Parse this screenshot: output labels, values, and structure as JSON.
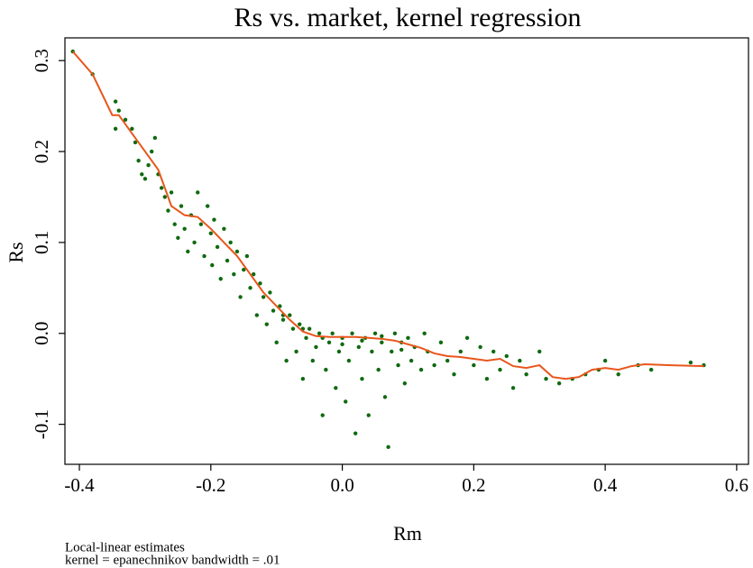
{
  "chart_data": {
    "type": "scatter",
    "title": "Rs vs. market, kernel regression",
    "x_label": "Rm",
    "y_label": "Rs",
    "notes": [
      "Local-linear estimates",
      "kernel = epanechnikov bandwidth = .01"
    ],
    "xlim": [
      -0.422,
      0.618
    ],
    "ylim": [
      -0.144,
      0.325
    ],
    "xticks": [
      -0.4,
      -0.2,
      {
        "value": 0,
        "label": "0.0"
      },
      0.2,
      0.4,
      0.6
    ],
    "yticks": [
      0.3,
      0.2,
      0.1,
      {
        "value": 0,
        "label": "0.0"
      },
      -0.1
    ],
    "series": [
      {
        "type": "scatter",
        "color": "#0f6a0f",
        "x": [
          -0.41,
          -0.38,
          -0.345,
          -0.345,
          -0.34,
          -0.33,
          -0.32,
          -0.315,
          -0.31,
          -0.305,
          -0.3,
          -0.295,
          -0.29,
          -0.285,
          -0.28,
          -0.275,
          -0.27,
          -0.265,
          -0.26,
          -0.255,
          -0.25,
          -0.245,
          -0.24,
          -0.235,
          -0.23,
          -0.225,
          -0.22,
          -0.215,
          -0.21,
          -0.205,
          -0.2,
          -0.198,
          -0.195,
          -0.19,
          -0.185,
          -0.18,
          -0.175,
          -0.17,
          -0.165,
          -0.16,
          -0.155,
          -0.15,
          -0.145,
          -0.14,
          -0.135,
          -0.13,
          -0.125,
          -0.12,
          -0.115,
          -0.11,
          -0.105,
          -0.1,
          -0.095,
          -0.09,
          -0.085,
          -0.08,
          -0.075,
          -0.07,
          -0.065,
          -0.06,
          -0.055,
          -0.05,
          -0.045,
          -0.04,
          -0.035,
          -0.03,
          -0.025,
          -0.02,
          -0.015,
          -0.01,
          -0.005,
          0,
          0.005,
          0.01,
          0.015,
          0.02,
          0.025,
          0.03,
          0.035,
          0.04,
          0.045,
          0.05,
          0.055,
          0.06,
          0.065,
          0.07,
          0.075,
          0.08,
          0.085,
          0.09,
          0.095,
          0.1,
          0.105,
          0.11,
          0.12,
          0.125,
          0.13,
          0.14,
          0.15,
          0.16,
          0.17,
          0.18,
          0.19,
          0.2,
          0.21,
          0.22,
          0.23,
          0.24,
          0.25,
          0.26,
          0.27,
          0.28,
          0.3,
          0.31,
          0.33,
          0.35,
          0.37,
          0.39,
          0.4,
          0.42,
          0.45,
          0.47,
          0.53,
          0.55,
          -0.03,
          0,
          0.03,
          0.06,
          0.09,
          -0.06,
          -0.09
        ],
        "y": [
          0.31,
          0.285,
          0.255,
          0.225,
          0.245,
          0.235,
          0.225,
          0.21,
          0.19,
          0.175,
          0.17,
          0.185,
          0.2,
          0.215,
          0.175,
          0.16,
          0.15,
          0.135,
          0.155,
          0.12,
          0.105,
          0.14,
          0.115,
          0.09,
          0.13,
          0.1,
          0.155,
          0.12,
          0.085,
          0.14,
          0.11,
          0.075,
          0.125,
          0.095,
          0.06,
          0.115,
          0.08,
          0.1,
          0.065,
          0.09,
          0.04,
          0.07,
          0.085,
          0.05,
          0.065,
          0.02,
          0.055,
          0.04,
          0.01,
          0.045,
          0.025,
          -0.01,
          0.03,
          0.015,
          -0.03,
          0.02,
          0.005,
          -0.02,
          0.01,
          -0.05,
          -0.005,
          0.005,
          -0.03,
          -0.015,
          0,
          -0.09,
          -0.04,
          -0.01,
          0,
          -0.06,
          -0.02,
          -0.005,
          -0.075,
          -0.03,
          0,
          -0.11,
          -0.015,
          -0.05,
          -0.005,
          -0.09,
          -0.02,
          0,
          -0.04,
          -0.01,
          -0.07,
          -0.125,
          -0.02,
          0,
          -0.035,
          -0.01,
          -0.055,
          -0.005,
          -0.03,
          -0.015,
          -0.04,
          0,
          -0.02,
          -0.035,
          -0.01,
          -0.03,
          -0.045,
          -0.02,
          -0.005,
          -0.035,
          -0.015,
          -0.05,
          -0.02,
          -0.04,
          -0.025,
          -0.06,
          -0.03,
          -0.045,
          -0.02,
          -0.05,
          -0.055,
          -0.05,
          -0.045,
          -0.04,
          -0.03,
          -0.045,
          -0.035,
          -0.04,
          -0.032,
          -0.035,
          -0.005,
          -0.012,
          -0.008,
          -0.003,
          -0.018,
          0.005,
          0.02
        ]
      },
      {
        "type": "line",
        "color": "#e8561c",
        "x": [
          -0.41,
          -0.38,
          -0.35,
          -0.34,
          -0.32,
          -0.3,
          -0.28,
          -0.26,
          -0.24,
          -0.22,
          -0.2,
          -0.18,
          -0.16,
          -0.14,
          -0.12,
          -0.1,
          -0.08,
          -0.06,
          -0.04,
          -0.02,
          0,
          0.02,
          0.04,
          0.06,
          0.08,
          0.1,
          0.12,
          0.14,
          0.16,
          0.18,
          0.2,
          0.22,
          0.24,
          0.26,
          0.28,
          0.3,
          0.32,
          0.34,
          0.36,
          0.38,
          0.4,
          0.42,
          0.44,
          0.46,
          0.5,
          0.55
        ],
        "y": [
          0.31,
          0.285,
          0.24,
          0.24,
          0.22,
          0.2,
          0.18,
          0.14,
          0.13,
          0.128,
          0.115,
          0.1,
          0.085,
          0.065,
          0.045,
          0.03,
          0.015,
          0.002,
          -0.003,
          -0.004,
          -0.004,
          -0.004,
          -0.005,
          -0.006,
          -0.008,
          -0.012,
          -0.016,
          -0.022,
          -0.025,
          -0.026,
          -0.028,
          -0.03,
          -0.028,
          -0.036,
          -0.038,
          -0.035,
          -0.048,
          -0.05,
          -0.048,
          -0.04,
          -0.038,
          -0.04,
          -0.036,
          -0.034,
          -0.035,
          -0.036
        ]
      }
    ]
  }
}
